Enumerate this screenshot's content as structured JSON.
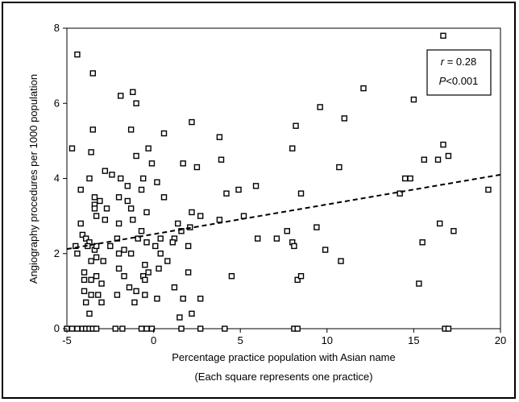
{
  "chart_data": {
    "type": "scatter",
    "xlabel": "Percentage practice population with Asian name",
    "xlabel_note": "(Each square represents one practice)",
    "ylabel": "Angiography procedures per 1000 population",
    "xlim": [
      -5,
      20
    ],
    "ylim": [
      0,
      8
    ],
    "xticks": [
      "-5",
      "0",
      "5",
      "10",
      "15",
      "20"
    ],
    "yticks": [
      "0",
      "2",
      "4",
      "6",
      "8"
    ],
    "annotation": {
      "r_label": "r",
      "r_value": " = 0.28",
      "p_label": "P",
      "p_value": "<0.001"
    },
    "trendline": {
      "style": "dashed",
      "x": [
        -5,
        20
      ],
      "y": [
        2.12,
        4.1
      ]
    },
    "points": [
      [
        -4.4,
        7.3
      ],
      [
        -3.5,
        6.8
      ],
      [
        -1.9,
        6.2
      ],
      [
        -1.2,
        6.3
      ],
      [
        -1.0,
        6.0
      ],
      [
        -3.5,
        5.3
      ],
      [
        -1.3,
        5.3
      ],
      [
        0.6,
        5.2
      ],
      [
        2.2,
        5.5
      ],
      [
        3.8,
        5.1
      ],
      [
        -3.6,
        4.7
      ],
      [
        -1.0,
        4.6
      ],
      [
        -4.7,
        4.8
      ],
      [
        -0.3,
        4.8
      ],
      [
        -0.1,
        4.4
      ],
      [
        1.7,
        4.4
      ],
      [
        2.5,
        4.3
      ],
      [
        3.9,
        4.5
      ],
      [
        -2.8,
        4.2
      ],
      [
        -2.4,
        4.1
      ],
      [
        -1.9,
        4.0
      ],
      [
        -1.5,
        3.8
      ],
      [
        -0.6,
        4.0
      ],
      [
        0.2,
        3.9
      ],
      [
        -4.2,
        3.7
      ],
      [
        -3.7,
        4.0
      ],
      [
        -3.4,
        3.5
      ],
      [
        -3.4,
        3.3
      ],
      [
        -3.1,
        3.4
      ],
      [
        -2.0,
        3.5
      ],
      [
        -1.5,
        3.4
      ],
      [
        -0.7,
        3.7
      ],
      [
        0.6,
        3.5
      ],
      [
        2.2,
        3.1
      ],
      [
        2.7,
        3.0
      ],
      [
        4.2,
        3.6
      ],
      [
        4.9,
        3.7
      ],
      [
        5.9,
        3.8
      ],
      [
        -3.4,
        3.2
      ],
      [
        -3.3,
        3.0
      ],
      [
        -2.7,
        3.2
      ],
      [
        -1.3,
        3.2
      ],
      [
        -0.4,
        3.1
      ],
      [
        -1.2,
        2.9
      ],
      [
        1.4,
        2.8
      ],
      [
        1.6,
        2.6
      ],
      [
        2.1,
        2.7
      ],
      [
        3.8,
        2.9
      ],
      [
        5.2,
        3.0
      ],
      [
        -4.2,
        2.8
      ],
      [
        -2.8,
        2.9
      ],
      [
        -2.0,
        2.8
      ],
      [
        -0.7,
        2.6
      ],
      [
        0.4,
        2.4
      ],
      [
        1.2,
        2.4
      ],
      [
        -4.1,
        2.5
      ],
      [
        -3.9,
        2.4
      ],
      [
        -3.7,
        2.3
      ],
      [
        -4.5,
        2.2
      ],
      [
        -3.8,
        2.2
      ],
      [
        -3.4,
        2.1
      ],
      [
        -3.3,
        2.2
      ],
      [
        -2.5,
        2.2
      ],
      [
        -2.1,
        2.4
      ],
      [
        -0.9,
        2.4
      ],
      [
        -0.4,
        2.3
      ],
      [
        0.1,
        2.2
      ],
      [
        1.1,
        2.3
      ],
      [
        2.0,
        2.2
      ],
      [
        -4.4,
        2.0
      ],
      [
        -3.6,
        1.8
      ],
      [
        -3.3,
        1.9
      ],
      [
        -2.9,
        1.8
      ],
      [
        -2.0,
        2.0
      ],
      [
        -1.7,
        2.1
      ],
      [
        -1.3,
        2.0
      ],
      [
        0.4,
        2.0
      ],
      [
        0.8,
        1.8
      ],
      [
        -0.5,
        1.7
      ],
      [
        -4.0,
        1.5
      ],
      [
        -3.3,
        1.4
      ],
      [
        -2.0,
        1.6
      ],
      [
        -1.7,
        1.4
      ],
      [
        -0.6,
        1.4
      ],
      [
        -0.3,
        1.5
      ],
      [
        0.3,
        1.6
      ],
      [
        2.0,
        1.5
      ],
      [
        -4.0,
        1.3
      ],
      [
        -3.6,
        1.3
      ],
      [
        -3.0,
        1.2
      ],
      [
        -1.4,
        1.1
      ],
      [
        -0.5,
        1.3
      ],
      [
        1.2,
        1.1
      ],
      [
        -4.0,
        1.0
      ],
      [
        -3.6,
        0.9
      ],
      [
        -3.2,
        0.9
      ],
      [
        -2.1,
        0.9
      ],
      [
        -1.0,
        1.0
      ],
      [
        -0.5,
        0.9
      ],
      [
        -3.9,
        0.7
      ],
      [
        -3.0,
        0.7
      ],
      [
        -1.1,
        0.7
      ],
      [
        0.2,
        0.8
      ],
      [
        1.7,
        0.8
      ],
      [
        2.7,
        0.8
      ],
      [
        -3.7,
        0.4
      ],
      [
        1.5,
        0.3
      ],
      [
        2.2,
        0.4
      ],
      [
        4.5,
        1.4
      ],
      [
        6.0,
        2.4
      ],
      [
        7.1,
        2.4
      ],
      [
        7.7,
        2.6
      ],
      [
        8.0,
        2.3
      ],
      [
        8.1,
        2.2
      ],
      [
        8.3,
        1.3
      ],
      [
        8.5,
        1.4
      ],
      [
        8.5,
        3.6
      ],
      [
        9.4,
        2.7
      ],
      [
        9.9,
        2.1
      ],
      [
        10.8,
        1.8
      ],
      [
        8.0,
        4.8
      ],
      [
        8.2,
        5.4
      ],
      [
        9.6,
        5.9
      ],
      [
        11.0,
        5.6
      ],
      [
        12.1,
        6.4
      ],
      [
        10.7,
        4.3
      ],
      [
        14.2,
        3.6
      ],
      [
        14.5,
        4.0
      ],
      [
        14.8,
        4.0
      ],
      [
        15.0,
        6.1
      ],
      [
        15.3,
        1.2
      ],
      [
        15.5,
        2.3
      ],
      [
        15.6,
        4.5
      ],
      [
        16.4,
        4.5
      ],
      [
        16.5,
        2.8
      ],
      [
        16.7,
        4.9
      ],
      [
        17.0,
        4.6
      ],
      [
        17.3,
        2.6
      ],
      [
        16.7,
        7.8
      ],
      [
        19.3,
        3.7
      ],
      [
        -5.0,
        0.0
      ],
      [
        -4.7,
        0.0
      ],
      [
        -4.4,
        0.0
      ],
      [
        -4.1,
        0.0
      ],
      [
        -3.9,
        0.0
      ],
      [
        -3.7,
        0.0
      ],
      [
        -3.5,
        0.0
      ],
      [
        -3.3,
        0.0
      ],
      [
        -2.2,
        0.0
      ],
      [
        -1.8,
        0.0
      ],
      [
        -0.7,
        0.0
      ],
      [
        -0.4,
        0.0
      ],
      [
        -0.1,
        0.0
      ],
      [
        1.6,
        0.0
      ],
      [
        2.7,
        0.0
      ],
      [
        4.1,
        0.0
      ],
      [
        8.1,
        0.0
      ],
      [
        8.3,
        0.0
      ],
      [
        16.8,
        0.0
      ],
      [
        17.0,
        0.0
      ]
    ]
  }
}
